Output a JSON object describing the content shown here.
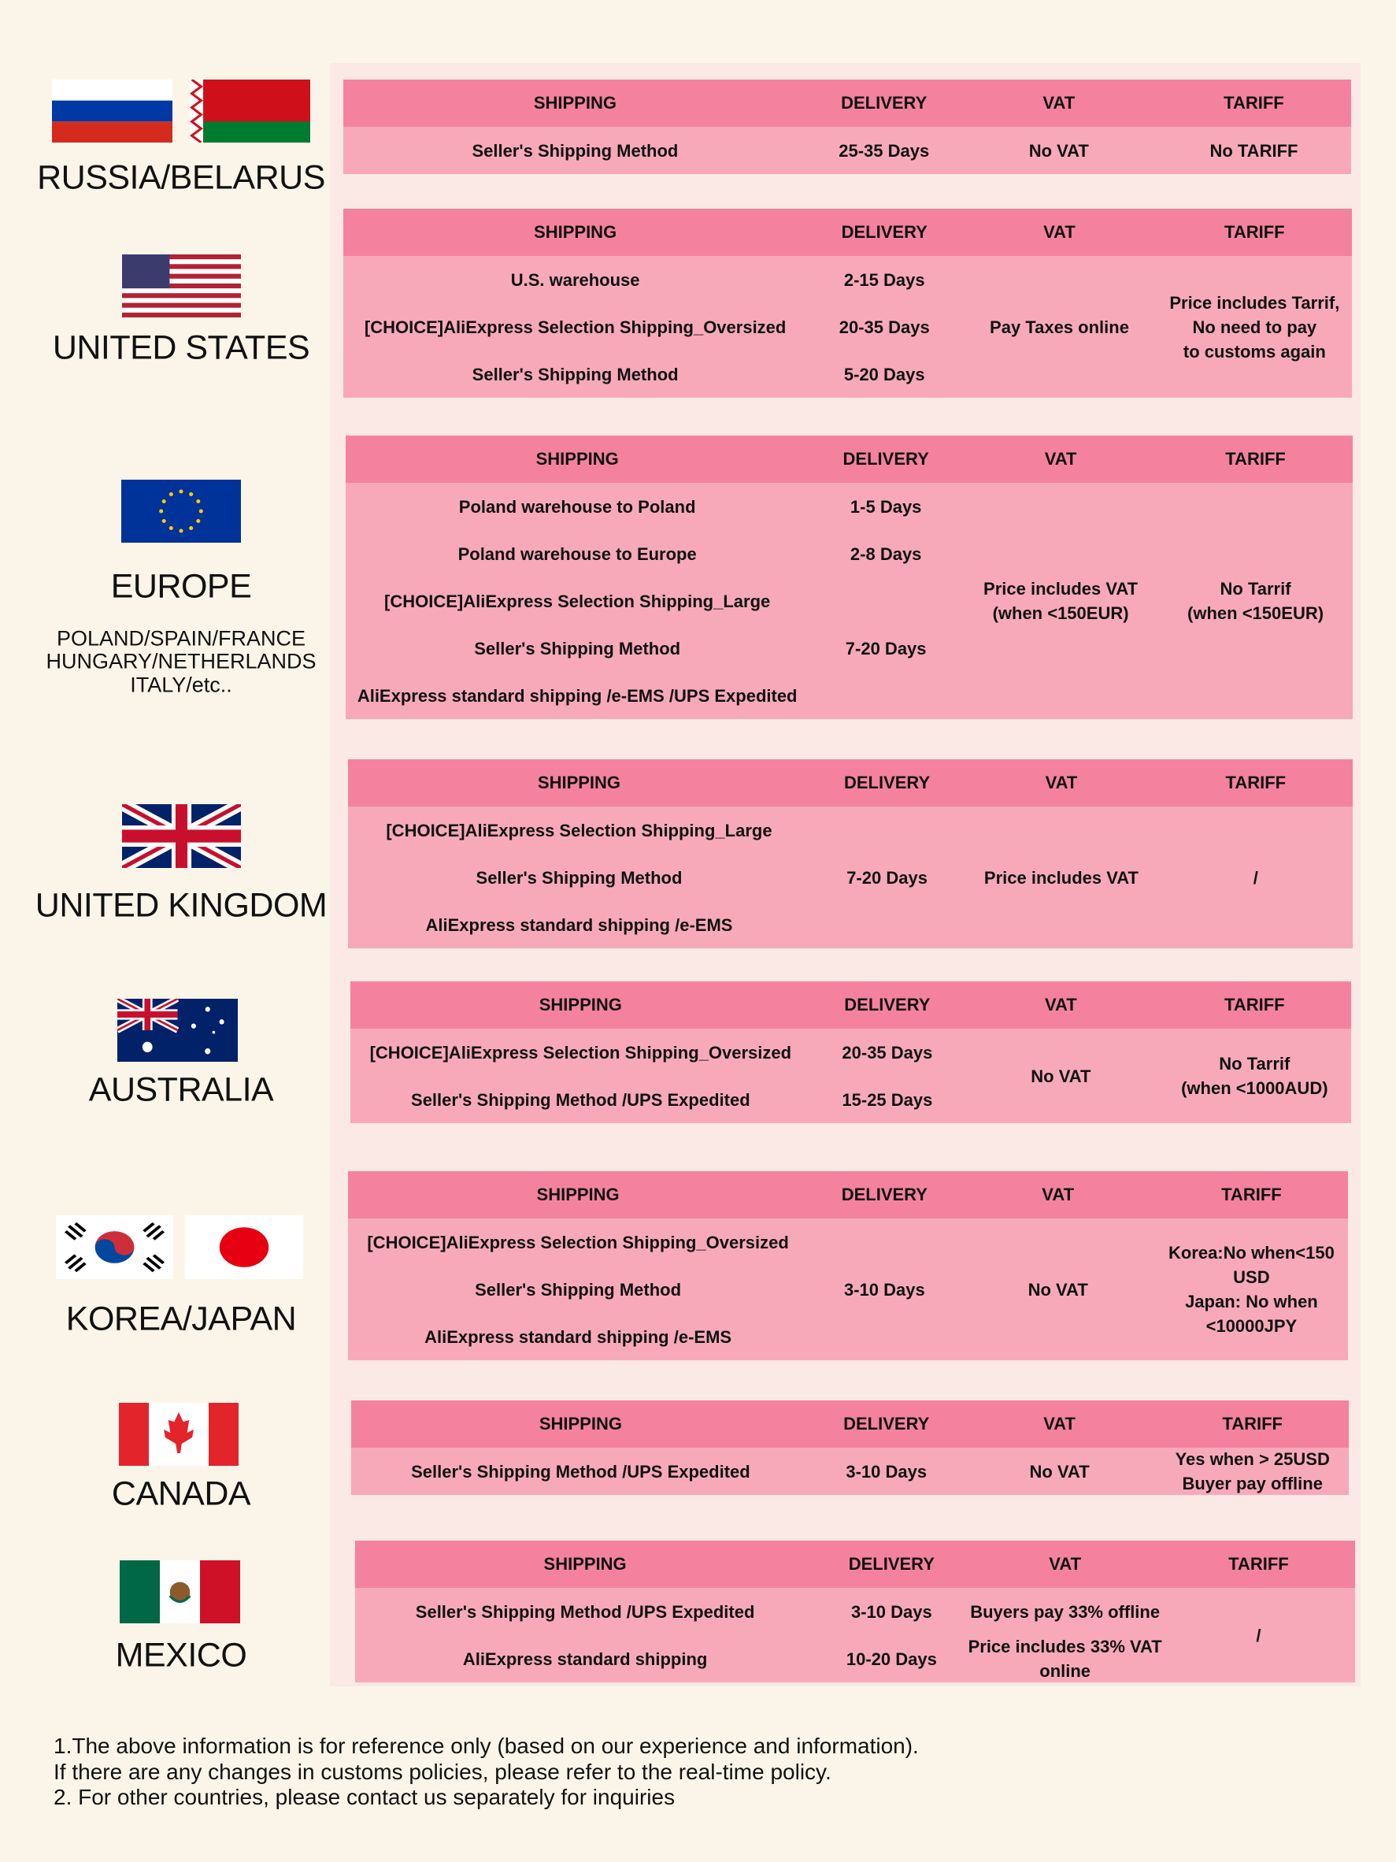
{
  "headers": {
    "shipping": "SHIPPING",
    "delivery": "DELIVERY",
    "vat": "VAT",
    "tariff": "TARIFF"
  },
  "colors": {
    "background": "#fbf5e9",
    "panel": "#fbe9e6",
    "header": "#f4829e",
    "body": "#f7a9ba"
  },
  "countries": {
    "russia_belarus": "RUSSIA/BELARUS",
    "united_states": "UNITED STATES",
    "europe": "EUROPE",
    "europe_sub": [
      "POLAND/SPAIN/FRANCE",
      "HUNGARY/NETHERLANDS",
      "ITALY/etc.."
    ],
    "united_kingdom": "UNITED KINGDOM",
    "australia": "AUSTRALIA",
    "korea_japan": "KOREA/JAPAN",
    "canada": "CANADA",
    "mexico": "MEXICO"
  },
  "tables": [
    {
      "id": "russia-belarus",
      "shipping": [
        "Seller's Shipping Method"
      ],
      "delivery": [
        {
          "text": "25-35 Days",
          "span": 1
        }
      ],
      "vat": [
        {
          "text": "No VAT",
          "span": 1
        }
      ],
      "tariff": [
        {
          "text": "No TARIFF",
          "span": 1
        }
      ]
    },
    {
      "id": "united-states",
      "shipping": [
        "U.S. warehouse",
        "[CHOICE]AliExpress Selection Shipping_Oversized",
        "Seller's Shipping Method"
      ],
      "delivery": [
        {
          "text": "2-15 Days",
          "span": 1
        },
        {
          "text": "20-35 Days",
          "span": 1
        },
        {
          "text": "5-20 Days",
          "span": 1
        }
      ],
      "vat": [
        {
          "text": "Pay Taxes online",
          "span": 3
        }
      ],
      "tariff": [
        {
          "text": "Price includes Tarrif,\nNo need to pay\nto customs again",
          "span": 3
        }
      ]
    },
    {
      "id": "europe",
      "shipping": [
        "Poland warehouse to Poland",
        "Poland warehouse to Europe",
        "[CHOICE]AliExpress Selection Shipping_Large",
        "Seller's Shipping Method",
        "AliExpress standard shipping /e-EMS /UPS Expedited"
      ],
      "delivery": [
        {
          "text": "1-5 Days",
          "span": 1
        },
        {
          "text": "2-8 Days",
          "span": 1
        },
        {
          "text": "7-20 Days",
          "span": 3
        }
      ],
      "vat": [
        {
          "text": "Price includes VAT\n(when <150EUR)",
          "span": 5
        }
      ],
      "tariff": [
        {
          "text": "No Tarrif\n(when <150EUR)",
          "span": 5
        }
      ]
    },
    {
      "id": "united-kingdom",
      "shipping": [
        "[CHOICE]AliExpress Selection Shipping_Large",
        "Seller's Shipping Method",
        "AliExpress standard shipping /e-EMS"
      ],
      "delivery": [
        {
          "text": "7-20 Days",
          "span": 3
        }
      ],
      "vat": [
        {
          "text": "Price includes VAT",
          "span": 3
        }
      ],
      "tariff": [
        {
          "text": "/",
          "span": 3
        }
      ]
    },
    {
      "id": "australia",
      "shipping": [
        "[CHOICE]AliExpress Selection Shipping_Oversized",
        "Seller's Shipping Method /UPS Expedited"
      ],
      "delivery": [
        {
          "text": "20-35 Days",
          "span": 1
        },
        {
          "text": "15-25 Days",
          "span": 1
        }
      ],
      "vat": [
        {
          "text": "No VAT",
          "span": 2
        }
      ],
      "tariff": [
        {
          "text": "No Tarrif\n(when <1000AUD)",
          "span": 2
        }
      ]
    },
    {
      "id": "korea-japan",
      "shipping": [
        "[CHOICE]AliExpress Selection Shipping_Oversized",
        "Seller's Shipping Method",
        "AliExpress standard shipping /e-EMS"
      ],
      "delivery": [
        {
          "text": "3-10 Days",
          "span": 3
        }
      ],
      "vat": [
        {
          "text": "No VAT",
          "span": 3
        }
      ],
      "tariff": [
        {
          "text": "Korea:No when<150\nUSD\nJapan: No when\n<10000JPY",
          "span": 3
        }
      ]
    },
    {
      "id": "canada",
      "shipping": [
        "Seller's Shipping Method /UPS Expedited"
      ],
      "delivery": [
        {
          "text": "3-10 Days",
          "span": 1
        }
      ],
      "vat": [
        {
          "text": "No VAT",
          "span": 1
        }
      ],
      "tariff": [
        {
          "text": "Yes when > 25USD\nBuyer pay offline",
          "span": 1
        }
      ]
    },
    {
      "id": "mexico",
      "shipping": [
        "Seller's Shipping Method /UPS Expedited",
        "AliExpress standard shipping"
      ],
      "delivery": [
        {
          "text": "3-10 Days",
          "span": 1
        },
        {
          "text": "10-20 Days",
          "span": 1
        }
      ],
      "vat": [
        {
          "text": "Buyers pay 33% offline",
          "span": 1
        },
        {
          "text": "Price includes 33% VAT\nonline",
          "span": 1
        }
      ],
      "tariff": [
        {
          "text": "/",
          "span": 2
        }
      ]
    }
  ],
  "footer": [
    "1.The above information is for reference only (based on our experience and information).",
    "If there are any changes in customs policies, please refer to the real-time policy.",
    "2. For other countries, please contact us separately for inquiries"
  ]
}
